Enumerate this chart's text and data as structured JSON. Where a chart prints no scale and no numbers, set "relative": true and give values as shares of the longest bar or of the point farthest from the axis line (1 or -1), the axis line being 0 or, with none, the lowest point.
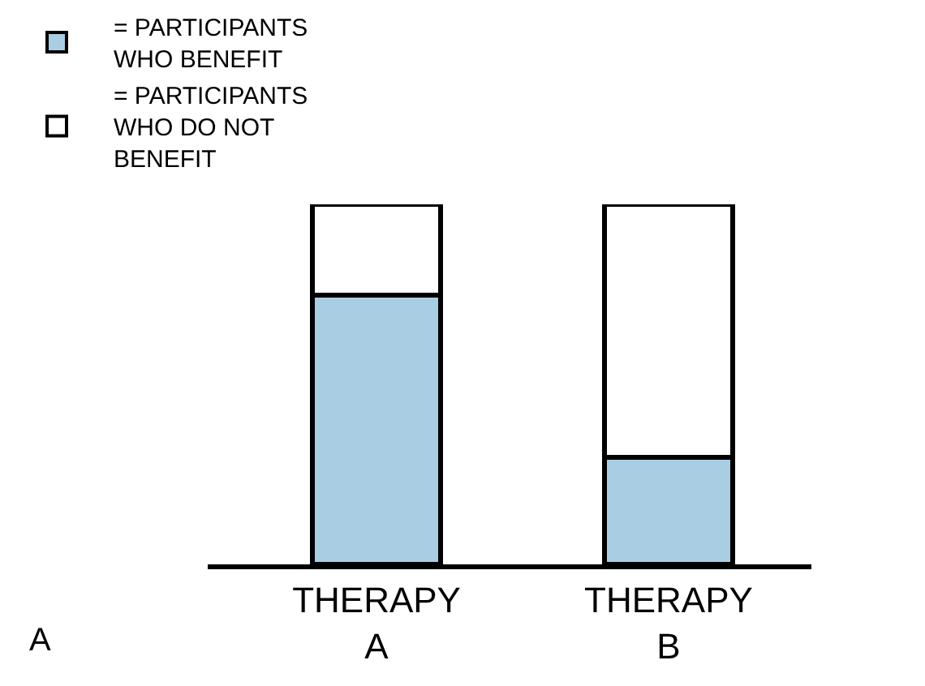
{
  "chart_data": {
    "type": "bar",
    "stacked": true,
    "relative": true,
    "categories": [
      "THERAPY\nA",
      "THERAPY\nB"
    ],
    "series": [
      {
        "name": "= PARTICIPANTS\nWHO BENEFIT",
        "color": "#a9cde3",
        "values": [
          0.747,
          0.298
        ]
      },
      {
        "name": "= PARTICIPANTS\nWHO DO NOT\nBENEFIT",
        "color": "#ffffff",
        "values": [
          0.253,
          0.702
        ]
      }
    ],
    "legend": "top",
    "annotations": [
      "A"
    ]
  }
}
